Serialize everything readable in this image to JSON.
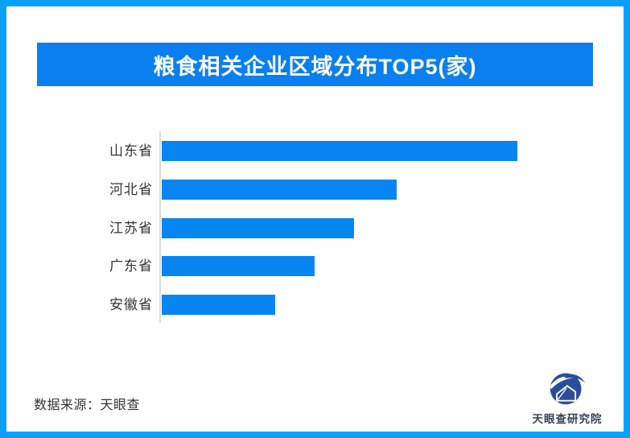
{
  "title_bar": {
    "text": "粮食相关企业区域分布TOP5(家)"
  },
  "source_text": "数据来源：天眼查",
  "logo": {
    "icon": "tianyancha-eye-house-logo",
    "text": "天眼查研究院"
  },
  "colors": {
    "frame_border": "#0aa0f8",
    "title_background": "#0a7fef",
    "title_text": "#ffffff",
    "bar": "#0786f2",
    "axis_line": "#dddddd",
    "category_label": "#333333",
    "source_text": "#333333",
    "logo_blue": "#2a4e9c",
    "logo_text": "#35425b"
  },
  "chart_data": {
    "type": "bar",
    "orientation": "horizontal",
    "title": "粮食相关企业区域分布TOP5(家)",
    "categories": [
      "山东省",
      "河北省",
      "江苏省",
      "广东省",
      "安徽省"
    ],
    "values": [
      100,
      66,
      54,
      43,
      32
    ],
    "value_scale": "relative length, max bar = 100 (no numeric data labels visible in image)",
    "xlabel": "",
    "ylabel": "",
    "xlim": [
      0,
      100
    ],
    "grid": false,
    "legend": false,
    "value_labels_visible": false
  }
}
